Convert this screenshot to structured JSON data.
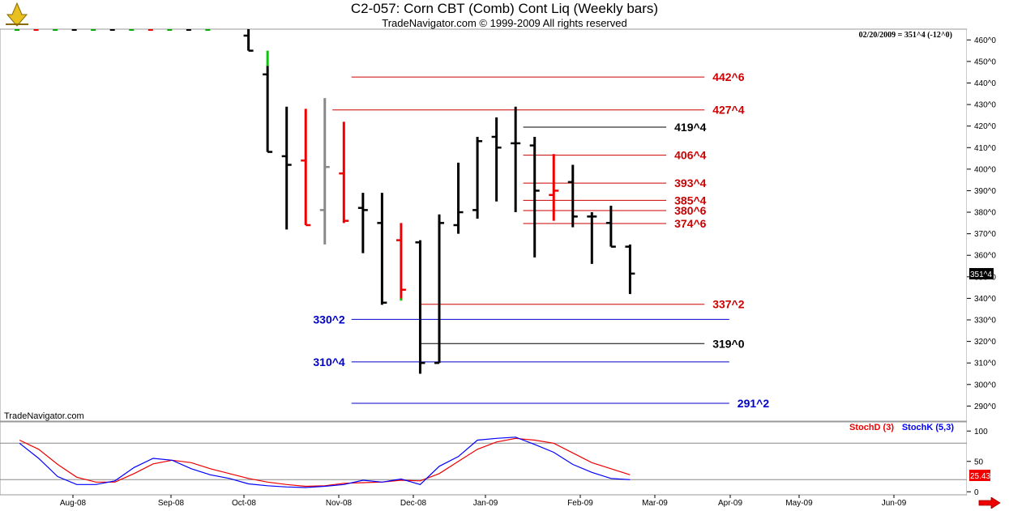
{
  "header": {
    "title": "C2-057:  Corn CBT (Comb) Cont Liq  (Weekly bars)",
    "subtitle": "TradeNavigator.com © 1999-2009 All rights reserved"
  },
  "price_panel": {
    "quote": "02/20/2009 = 351^4 (-12^0)",
    "last_price_tag": "351^4",
    "watermark": "TradeNavigator.com"
  },
  "stoch_panel": {
    "legend_d": "StochD (3)",
    "legend_k": "StochK (5,3)",
    "last_value": "25.43"
  },
  "colors": {
    "up": "#000000",
    "down": "#ee0000",
    "neutral": "#888888",
    "upmark": "#00cc00",
    "support": "#0000cc",
    "resist": "#cc0000",
    "stochK": "#0000ff",
    "stochD": "#ee0000"
  },
  "chart_data": {
    "type": "ohlc",
    "title": "C2-057:  Corn CBT (Comb) Cont Liq  (Weekly bars)",
    "y_unit": "cents/bu",
    "ylim": [
      283,
      465
    ],
    "yticks": [
      "290^0",
      "300^0",
      "310^0",
      "320^0",
      "330^0",
      "340^0",
      "350^0",
      "360^0",
      "370^0",
      "380^0",
      "390^0",
      "400^0",
      "410^0",
      "420^0",
      "430^0",
      "440^0",
      "450^0",
      "460^0"
    ],
    "x_ticks": [
      "Aug-08",
      "Sep-08",
      "Oct-08",
      "Nov-08",
      "Dec-08",
      "Jan-09",
      "Feb-09",
      "Mar-09",
      "Apr-09",
      "May-09",
      "Jun-09"
    ],
    "bars": [
      {
        "wk": 12.6,
        "o": 462,
        "h": 465,
        "l": 455,
        "c": 455,
        "col": "up"
      },
      {
        "wk": 13.6,
        "o": 444,
        "h": 448,
        "l": 408,
        "c": 408,
        "col": "up",
        "mark": [
          448,
          455
        ]
      },
      {
        "wk": 14.6,
        "o": 406,
        "h": 429,
        "l": 372,
        "c": 402,
        "col": "up"
      },
      {
        "wk": 15.6,
        "o": 404,
        "h": 428,
        "l": 374,
        "c": 374,
        "col": "down"
      },
      {
        "wk": 16.6,
        "o": 381,
        "h": 433,
        "l": 365,
        "c": 401,
        "col": "neutral"
      },
      {
        "wk": 17.6,
        "o": 398,
        "h": 422,
        "l": 375,
        "c": 376,
        "col": "down"
      },
      {
        "wk": 18.6,
        "o": 382,
        "h": 389,
        "l": 361,
        "c": 381,
        "col": "up"
      },
      {
        "wk": 19.6,
        "o": 375,
        "h": 389,
        "l": 337,
        "c": 338,
        "col": "up"
      },
      {
        "wk": 20.6,
        "o": 367,
        "h": 375,
        "l": 339,
        "c": 344,
        "col": "down",
        "mark": [
          339,
          340
        ]
      },
      {
        "wk": 21.6,
        "o": 366,
        "h": 367,
        "l": 305,
        "c": 310,
        "col": "up"
      },
      {
        "wk": 22.6,
        "o": 310,
        "h": 379,
        "l": 310,
        "c": 375,
        "col": "up"
      },
      {
        "wk": 23.6,
        "o": 374,
        "h": 403,
        "l": 370,
        "c": 380,
        "col": "up"
      },
      {
        "wk": 24.6,
        "o": 381,
        "h": 415,
        "l": 377,
        "c": 413,
        "col": "up"
      },
      {
        "wk": 25.6,
        "o": 415,
        "h": 424,
        "l": 385,
        "c": 410,
        "col": "up"
      },
      {
        "wk": 26.6,
        "o": 412,
        "h": 429,
        "l": 380,
        "c": 412,
        "col": "up"
      },
      {
        "wk": 27.6,
        "o": 411,
        "h": 415,
        "l": 359,
        "c": 390,
        "col": "up"
      },
      {
        "wk": 28.6,
        "o": 388,
        "h": 407,
        "l": 376,
        "c": 390,
        "col": "down"
      },
      {
        "wk": 29.6,
        "o": 394,
        "h": 402,
        "l": 373,
        "c": 378,
        "col": "up"
      },
      {
        "wk": 30.6,
        "o": 378,
        "h": 380,
        "l": 356,
        "c": 378,
        "col": "up"
      },
      {
        "wk": 31.6,
        "o": 375,
        "h": 383,
        "l": 364,
        "c": 364,
        "col": "up"
      },
      {
        "wk": 32.6,
        "o": 364,
        "h": 365,
        "l": 342,
        "c": 351.5,
        "col": "up"
      }
    ],
    "levels": [
      {
        "label": "442^6",
        "value": 442.75,
        "color": "resist",
        "from": 18,
        "to": 36.5,
        "side": "right"
      },
      {
        "label": "427^4",
        "value": 427.5,
        "color": "resist",
        "from": 17,
        "to": 36.5,
        "side": "right"
      },
      {
        "label": "419^4",
        "value": 419.5,
        "color": "up",
        "from": 27,
        "to": 34.5,
        "side": "right"
      },
      {
        "label": "406^4",
        "value": 406.5,
        "color": "resist",
        "from": 27,
        "to": 34.5,
        "side": "right"
      },
      {
        "label": "393^4",
        "value": 393.5,
        "color": "resist",
        "from": 27,
        "to": 34.5,
        "side": "right"
      },
      {
        "label": "385^4",
        "value": 385.5,
        "color": "resist",
        "from": 27,
        "to": 34.5,
        "side": "right"
      },
      {
        "label": "380^6",
        "value": 380.75,
        "color": "resist",
        "from": 27,
        "to": 34.5,
        "side": "right"
      },
      {
        "label": "374^6",
        "value": 374.75,
        "color": "resist",
        "from": 27,
        "to": 34.5,
        "side": "right"
      },
      {
        "label": "337^2",
        "value": 337.25,
        "color": "resist",
        "from": 21.6,
        "to": 36.5,
        "side": "right"
      },
      {
        "label": "330^2",
        "value": 330.25,
        "color": "support",
        "from": 18,
        "to": 37.8,
        "side": "left"
      },
      {
        "label": "319^0",
        "value": 319.0,
        "color": "up",
        "from": 21.6,
        "to": 36.5,
        "side": "right"
      },
      {
        "label": "310^4",
        "value": 310.5,
        "color": "support",
        "from": 18,
        "to": 37.8,
        "side": "left"
      },
      {
        "label": "291^2",
        "value": 291.25,
        "color": "support",
        "from": 18,
        "to": 37.8,
        "side": "right"
      }
    ],
    "stochastic": {
      "ylim": [
        -5,
        115
      ],
      "yticks": [
        "0",
        "50",
        "100"
      ],
      "guide_levels": [
        20,
        80
      ],
      "x": [
        0.6,
        1.6,
        2.6,
        3.6,
        4.6,
        5.6,
        6.6,
        7.6,
        8.6,
        9.6,
        10.6,
        11.6,
        12.6,
        13.6,
        14.6,
        15.6,
        16.6,
        17.6,
        18.6,
        19.6,
        20.6,
        21.6,
        22.6,
        23.6,
        24.6,
        25.6,
        26.6,
        27.6,
        28.6,
        29.6,
        30.6,
        31.6,
        32.6
      ],
      "k": [
        80,
        55,
        25,
        12,
        12,
        18,
        40,
        55,
        52,
        38,
        28,
        22,
        13,
        10,
        8,
        7,
        9,
        12,
        19,
        16,
        21,
        12,
        42,
        58,
        85,
        88,
        90,
        78,
        65,
        45,
        32,
        22,
        20
      ],
      "d": [
        85,
        70,
        45,
        24,
        16,
        16,
        30,
        46,
        52,
        48,
        38,
        30,
        22,
        16,
        12,
        9,
        10,
        14,
        15,
        16,
        19,
        18,
        30,
        50,
        70,
        82,
        88,
        85,
        80,
        64,
        48,
        38,
        28
      ]
    }
  }
}
